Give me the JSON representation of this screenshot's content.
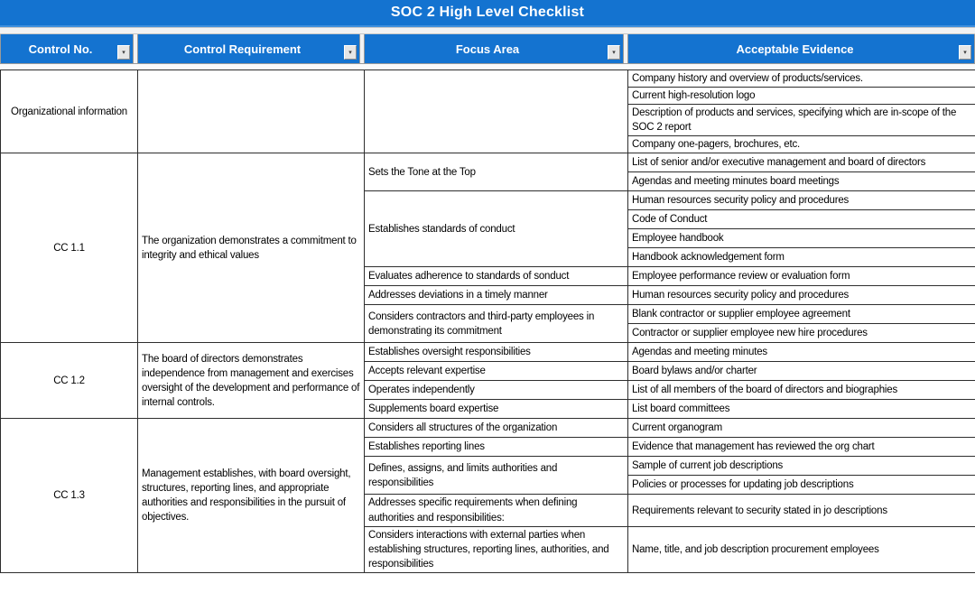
{
  "title": "SOC 2 High Level Checklist",
  "colors": {
    "header_blue": "#1473d0",
    "header_text": "#ffffff",
    "body_text": "#000000",
    "grid_border": "#2e2e2e"
  },
  "icons": {
    "filter_dropdown": "▾"
  },
  "table": {
    "columns": [
      {
        "label": "Control No."
      },
      {
        "label": "Control Requirement"
      },
      {
        "label": "Focus Area"
      },
      {
        "label": "Acceptable Evidence"
      }
    ],
    "blocks": [
      {
        "control_no": "Organizational information",
        "requirement": "",
        "focus_groups": [
          {
            "focus": "",
            "evidence": [
              "Company history and overview of products/services.",
              "Current high-resolution logo",
              "Description of products and services, specifying which are in-scope of the SOC 2 report",
              "Company one-pagers, brochures, etc."
            ]
          }
        ]
      },
      {
        "control_no": "CC 1.1",
        "requirement": "The organization demonstrates a commitment to integrity and ethical values",
        "focus_groups": [
          {
            "focus": "Sets the Tone at the Top",
            "evidence": [
              "List of senior and/or executive management and board of directors",
              "Agendas and meeting minutes board meetings"
            ]
          },
          {
            "focus": "Establishes standards of conduct",
            "evidence": [
              "Human resources security policy and procedures",
              "Code of Conduct",
              "Employee handbook",
              "Handbook acknowledgement form"
            ]
          },
          {
            "focus": "Evaluates adherence to standards of sonduct",
            "evidence": [
              "Employee performance review or evaluation form"
            ]
          },
          {
            "focus": "Addresses deviations in a timely manner",
            "evidence": [
              "Human resources security policy and procedures"
            ]
          },
          {
            "focus": "Considers contractors and third-party employees in demonstrating its commitment",
            "evidence": [
              "Blank contractor or supplier employee agreement",
              "Contractor or supplier employee new hire procedures"
            ]
          }
        ]
      },
      {
        "control_no": "CC 1.2",
        "requirement": "The board of directors demonstrates independence from management and exercises oversight of the development and performance of internal controls.",
        "focus_groups": [
          {
            "focus": "Establishes oversight responsibilities",
            "evidence": [
              "Agendas and meeting minutes"
            ]
          },
          {
            "focus": "Accepts relevant expertise",
            "evidence": [
              "Board bylaws and/or charter"
            ]
          },
          {
            "focus": "Operates independently",
            "evidence": [
              "List of all members of the board of directors and biographies"
            ]
          },
          {
            "focus": "Supplements board expertise",
            "evidence": [
              "List board committees"
            ]
          }
        ]
      },
      {
        "control_no": "CC 1.3",
        "requirement": "Management establishes, with board oversight, structures, reporting lines, and appropriate authorities and responsibilities in the pursuit of objectives.",
        "focus_groups": [
          {
            "focus": "Considers all structures of the organization",
            "evidence": [
              "Current organogram"
            ]
          },
          {
            "focus": "Establishes reporting lines",
            "evidence": [
              "Evidence that management has reviewed the org chart"
            ]
          },
          {
            "focus": "Defines, assigns, and limits authorities and responsibilities",
            "evidence": [
              "Sample of current job descriptions",
              "Policies or processes for updating job descriptions"
            ]
          },
          {
            "focus": "Addresses specific requirements when defining authorities and responsibilities:",
            "evidence": [
              "Requirements relevant to security stated in jo descriptions"
            ]
          },
          {
            "focus": "Considers interactions with external parties when establishing structures, reporting lines, authorities, and responsibilities",
            "evidence": [
              "Name, title, and job description procurement employees"
            ]
          }
        ]
      }
    ]
  }
}
